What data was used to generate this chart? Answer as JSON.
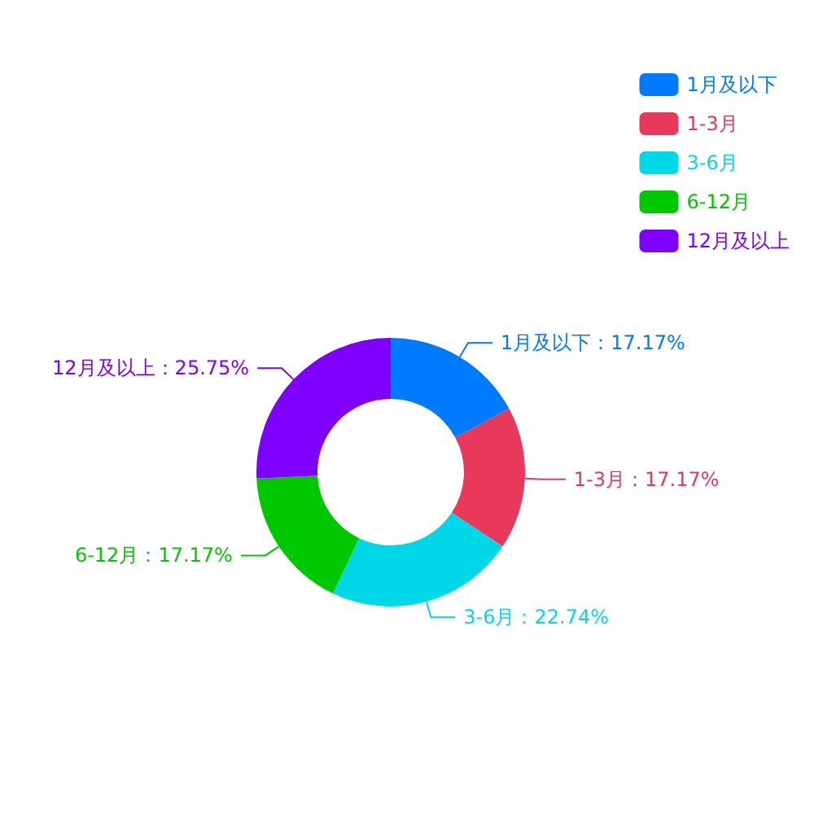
{
  "chart_data": {
    "type": "donut",
    "categories": [
      "1月及以下",
      "1-3月",
      "3-6月",
      "6-12月",
      "12月及以上"
    ],
    "values": [
      17.17,
      17.17,
      22.74,
      17.17,
      25.75
    ],
    "colors": [
      "#007aff",
      "#e8395d",
      "#00d8e8",
      "#00c800",
      "#7f00ff"
    ],
    "value_labels": [
      "1月及以下：17.17%",
      "1-3月：17.17%",
      "3-6月：22.74%",
      "6-12月：17.17%",
      "12月及以上：25.75%"
    ],
    "legend": "right"
  }
}
